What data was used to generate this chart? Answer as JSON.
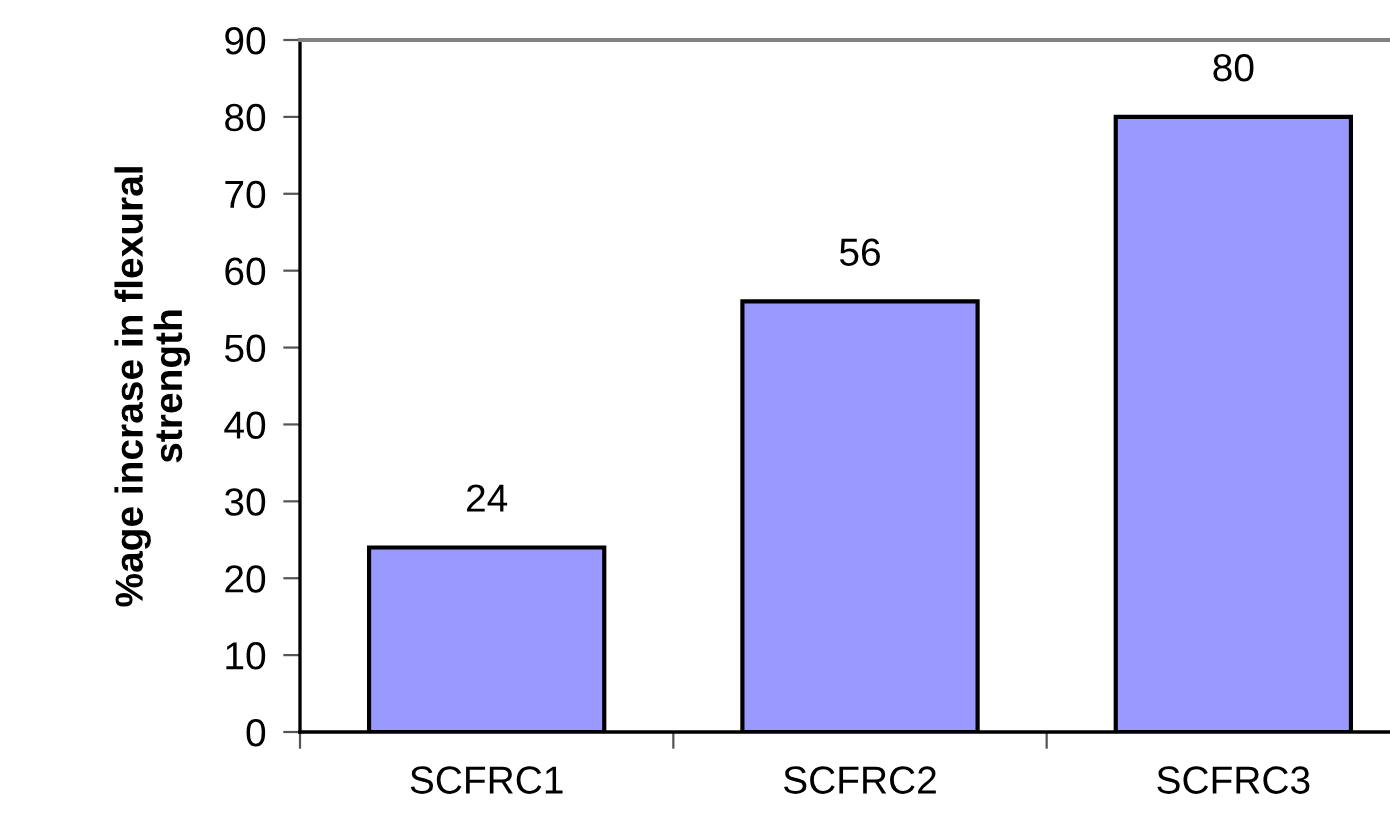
{
  "chart_data": {
    "type": "bar",
    "ylabel": "%age incrase in flexural\nstrength",
    "categories": [
      "SCFRC1",
      "SCFRC2",
      "SCFRC3"
    ],
    "values": [
      24,
      56,
      80
    ],
    "color": "#9999ff",
    "ylim": [
      0,
      90
    ],
    "yticks": [
      0,
      10,
      20,
      30,
      40,
      50,
      60,
      70,
      80,
      90
    ],
    "data_labels": true
  }
}
